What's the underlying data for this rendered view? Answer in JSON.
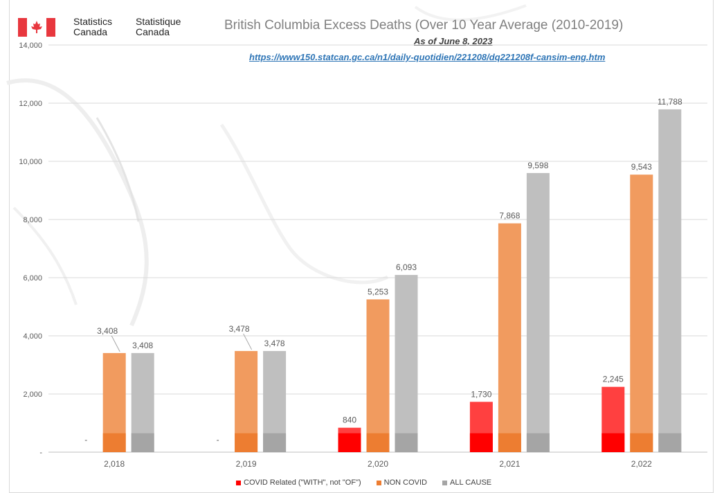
{
  "header": {
    "org_en_line1": "Statistics",
    "org_en_line2": "Canada",
    "org_fr_line1": "Statistique",
    "org_fr_line2": "Canada",
    "logo_icon": "canada-flag-icon"
  },
  "chart_data": {
    "type": "bar",
    "title": "British Columbia Excess Deaths (Over 10 Year Average (2010-2019)",
    "subtitle": "As of June 8, 2023",
    "source_url": "https://www150.statcan.gc.ca/n1/daily-quotidien/221208/dq221208f-cansim-eng.htm",
    "categories": [
      "2,018",
      "2,019",
      "2,020",
      "2,021",
      "2,022"
    ],
    "series": [
      {
        "name": "COVID Related (\"WITH\", not \"OF\")",
        "color": "#ff0000",
        "values": [
          0,
          0,
          840,
          1730,
          2245
        ],
        "labels": [
          "-",
          "-",
          "840",
          "1,730",
          "2,245"
        ]
      },
      {
        "name": "NON COVID",
        "color": "#ed7d31",
        "values": [
          3408,
          3478,
          5253,
          7868,
          9543
        ],
        "labels": [
          "3,408",
          "3,478",
          "5,253",
          "7,868",
          "9,543"
        ]
      },
      {
        "name": "ALL CAUSE",
        "color": "#a5a5a5",
        "values": [
          3408,
          3478,
          6093,
          9598,
          11788
        ],
        "labels": [
          "3,408",
          "3,478",
          "6,093",
          "9,598",
          "11,788"
        ]
      }
    ],
    "baseline_band_value": 650,
    "ylim": [
      0,
      14000
    ],
    "yticks": [
      0,
      2000,
      4000,
      6000,
      8000,
      10000,
      12000,
      14000
    ],
    "ytick_labels": [
      "-",
      "2,000",
      "4,000",
      "6,000",
      "8,000",
      "10,000",
      "12,000",
      "14,000"
    ],
    "grid": true,
    "legend_position": "bottom"
  }
}
